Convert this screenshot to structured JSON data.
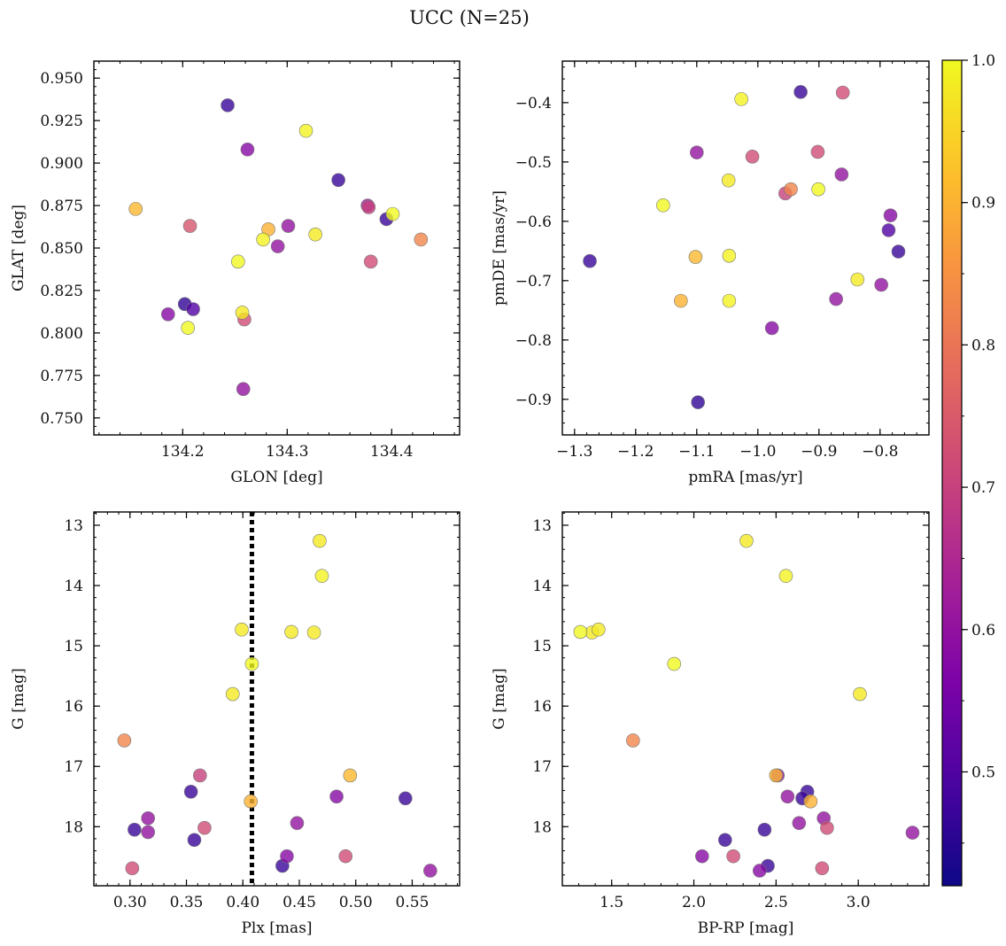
{
  "suptitle": "UCC (N=25)",
  "colorbar": {
    "cmap": "plasma",
    "range": [
      0.42,
      1.0
    ],
    "ticks": [
      0.5,
      0.6,
      0.7,
      0.8,
      0.9,
      1.0
    ],
    "tick_labels": [
      "0.5",
      "0.6",
      "0.7",
      "0.8",
      "0.9",
      "1.0"
    ]
  },
  "chart_data": [
    {
      "type": "scatter",
      "id": "glon-glat",
      "xlabel": "GLON [deg]",
      "ylabel": "GLAT [deg]",
      "xlim": [
        134.115,
        134.465
      ],
      "ylim": [
        0.74,
        0.96
      ],
      "xticks": [
        134.2,
        134.3,
        134.4
      ],
      "xtick_labels": [
        "134.2",
        "134.3",
        "134.4"
      ],
      "yticks": [
        0.75,
        0.775,
        0.8,
        0.825,
        0.85,
        0.875,
        0.9,
        0.925,
        0.95
      ],
      "ytick_labels": [
        "0.750",
        "0.775",
        "0.800",
        "0.825",
        "0.850",
        "0.875",
        "0.900",
        "0.925",
        "0.950"
      ],
      "x": [
        134.243,
        134.262,
        134.318,
        134.349,
        134.155,
        134.207,
        134.377,
        134.378,
        134.395,
        134.401,
        134.282,
        134.301,
        134.277,
        134.291,
        134.327,
        134.428,
        134.253,
        134.38,
        134.202,
        134.21,
        134.186,
        134.257,
        134.259,
        134.205,
        134.258
      ],
      "y": [
        0.934,
        0.908,
        0.919,
        0.89,
        0.873,
        0.863,
        0.875,
        0.874,
        0.867,
        0.87,
        0.861,
        0.863,
        0.855,
        0.851,
        0.858,
        0.855,
        0.842,
        0.842,
        0.817,
        0.814,
        0.811,
        0.812,
        0.808,
        0.803,
        0.767
      ],
      "c": [
        0.47,
        0.58,
        0.99,
        0.47,
        0.91,
        0.74,
        0.62,
        0.7,
        0.47,
        1.0,
        0.9,
        0.6,
        0.99,
        0.6,
        0.98,
        0.83,
        1.0,
        0.72,
        0.46,
        0.5,
        0.58,
        0.98,
        0.72,
        1.0,
        0.6
      ]
    },
    {
      "type": "scatter",
      "id": "pmra-pmde",
      "xlabel": "pmRA [mas/yr]",
      "ylabel": "pmDE [mas/yr]",
      "xlim": [
        -1.32,
        -0.72
      ],
      "ylim": [
        -0.96,
        -0.33
      ],
      "xticks": [
        -1.3,
        -1.2,
        -1.1,
        -1.0,
        -0.9,
        -0.8
      ],
      "xtick_labels": [
        "−1.3",
        "−1.2",
        "−1.1",
        "−1.0",
        "−0.9",
        "−0.8"
      ],
      "yticks": [
        -0.9,
        -0.8,
        -0.7,
        -0.6,
        -0.5,
        -0.4
      ],
      "ytick_labels": [
        "−0.9",
        "−0.8",
        "−0.7",
        "−0.6",
        "−0.5",
        "−0.4"
      ],
      "x": [
        -0.93,
        -0.861,
        -1.027,
        -1.1,
        -1.009,
        -0.902,
        -1.048,
        -0.863,
        -0.955,
        -0.946,
        -0.901,
        -1.155,
        -0.783,
        -0.786,
        -0.77,
        -1.275,
        -1.102,
        -1.047,
        -0.837,
        -0.798,
        -1.126,
        -1.047,
        -0.872,
        -0.977,
        -1.098
      ],
      "y": [
        -0.382,
        -0.383,
        -0.394,
        -0.484,
        -0.491,
        -0.483,
        -0.531,
        -0.521,
        -0.553,
        -0.546,
        -0.546,
        -0.573,
        -0.59,
        -0.615,
        -0.651,
        -0.667,
        -0.66,
        -0.658,
        -0.698,
        -0.707,
        -0.734,
        -0.734,
        -0.731,
        -0.78,
        -0.905
      ],
      "c": [
        0.47,
        0.72,
        0.99,
        0.6,
        0.72,
        0.72,
        0.98,
        0.6,
        0.7,
        0.83,
        1.0,
        1.0,
        0.58,
        0.5,
        0.47,
        0.47,
        0.91,
        0.99,
        0.98,
        0.6,
        0.9,
        0.99,
        0.6,
        0.58,
        0.46
      ]
    },
    {
      "type": "scatter",
      "id": "plx-g",
      "xlabel": "Plx [mas]",
      "ylabel": "G [mag]",
      "xlim": [
        0.268,
        0.592
      ],
      "ylim": [
        18.98,
        12.78
      ],
      "y_inverted": true,
      "vline": 0.408,
      "xticks": [
        0.3,
        0.35,
        0.4,
        0.45,
        0.5,
        0.55
      ],
      "xtick_labels": [
        "0.30",
        "0.35",
        "0.40",
        "0.45",
        "0.50",
        "0.55"
      ],
      "yticks": [
        13,
        14,
        15,
        16,
        17,
        18
      ],
      "ytick_labels": [
        "13",
        "14",
        "15",
        "16",
        "17",
        "18"
      ],
      "x": [
        0.468,
        0.47,
        0.399,
        0.443,
        0.463,
        0.408,
        0.391,
        0.295,
        0.362,
        0.495,
        0.354,
        0.407,
        0.483,
        0.544,
        0.316,
        0.448,
        0.304,
        0.316,
        0.366,
        0.357,
        0.439,
        0.491,
        0.435,
        0.302,
        0.566
      ],
      "y": [
        13.26,
        13.84,
        14.73,
        14.77,
        14.78,
        15.3,
        15.8,
        16.57,
        17.15,
        17.15,
        17.42,
        17.58,
        17.5,
        17.53,
        17.86,
        17.94,
        18.05,
        18.09,
        18.02,
        18.22,
        18.49,
        18.49,
        18.65,
        18.69,
        18.73
      ],
      "c": [
        0.98,
        0.99,
        0.98,
        0.98,
        0.98,
        1.0,
        0.98,
        0.83,
        0.7,
        0.91,
        0.47,
        0.9,
        0.58,
        0.47,
        0.6,
        0.6,
        0.47,
        0.6,
        0.72,
        0.47,
        0.58,
        0.72,
        0.47,
        0.72,
        0.6
      ]
    },
    {
      "type": "scatter",
      "id": "bprp-g",
      "xlabel": "BP-RP [mag]",
      "ylabel": "G [mag]",
      "xlim": [
        1.2,
        3.43
      ],
      "ylim": [
        18.98,
        12.78
      ],
      "y_inverted": true,
      "xticks": [
        1.5,
        2.0,
        2.5,
        3.0
      ],
      "xtick_labels": [
        "1.5",
        "2.0",
        "2.5",
        "3.0"
      ],
      "yticks": [
        13,
        14,
        15,
        16,
        17,
        18
      ],
      "ytick_labels": [
        "13",
        "14",
        "15",
        "16",
        "17",
        "18"
      ],
      "x": [
        2.32,
        2.56,
        1.31,
        1.38,
        1.42,
        1.88,
        3.01,
        1.63,
        2.51,
        2.5,
        2.69,
        2.71,
        2.57,
        2.66,
        2.79,
        2.64,
        2.43,
        3.33,
        2.81,
        2.19,
        2.05,
        2.24,
        2.45,
        2.78,
        2.4
      ],
      "y": [
        13.26,
        13.84,
        14.77,
        14.78,
        14.73,
        15.3,
        15.8,
        16.57,
        17.15,
        17.15,
        17.42,
        17.58,
        17.5,
        17.53,
        17.86,
        17.94,
        18.05,
        18.1,
        18.02,
        18.22,
        18.49,
        18.49,
        18.65,
        18.69,
        18.73
      ],
      "c": [
        0.98,
        0.99,
        1.0,
        0.98,
        0.98,
        1.0,
        0.98,
        0.83,
        0.58,
        0.91,
        0.47,
        0.9,
        0.6,
        0.47,
        0.6,
        0.6,
        0.47,
        0.6,
        0.72,
        0.47,
        0.58,
        0.72,
        0.47,
        0.72,
        0.58
      ]
    }
  ]
}
